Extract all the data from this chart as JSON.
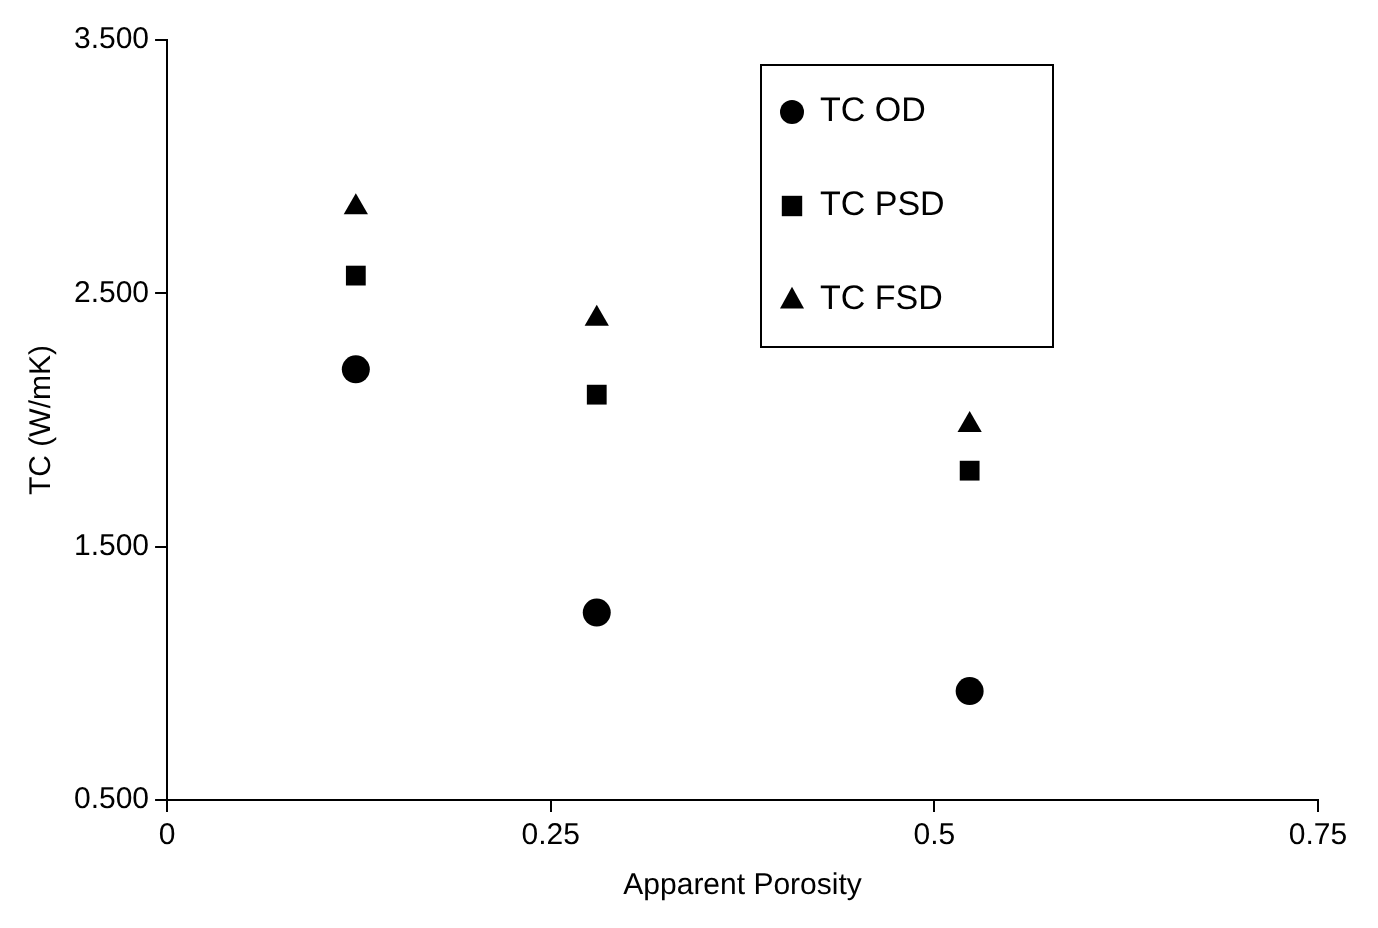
{
  "chart_data": {
    "type": "scatter",
    "xlabel": "Apparent Porosity",
    "ylabel": "TC (W/mK)",
    "x": [
      0.123,
      0.28,
      0.523
    ],
    "series": [
      {
        "name": "TC OD",
        "color": "#000000",
        "marker": "circle",
        "values": [
          2.2,
          1.24,
          0.93
        ]
      },
      {
        "name": "TC PSD",
        "color": "#000000",
        "marker": "square",
        "values": [
          2.57,
          2.1,
          1.8
        ]
      },
      {
        "name": "TC FSD",
        "color": "#000000",
        "marker": "triangle",
        "values": [
          2.84,
          2.4,
          1.98
        ]
      }
    ],
    "xlim": [
      0,
      0.75
    ],
    "xticks": [
      0,
      0.25,
      0.5,
      0.75
    ],
    "ylim": [
      0.5,
      3.5
    ],
    "yticks": [
      {
        "value": 0.5,
        "label": "0.500"
      },
      {
        "value": 1.5,
        "label": "1.500"
      },
      {
        "value": 2.5,
        "label": "2.500"
      },
      {
        "value": 3.5,
        "label": "3.500"
      }
    ],
    "grid": false,
    "legend": "top right"
  }
}
